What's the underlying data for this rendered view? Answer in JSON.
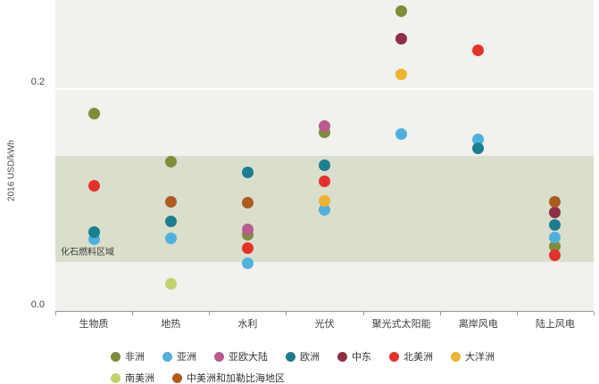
{
  "chart_data": {
    "type": "scatter",
    "title": "",
    "xlabel": "",
    "ylabel": "2016 USD/kWh",
    "ylim": [
      0,
      0.28
    ],
    "yticks": [
      0.2,
      0.0
    ],
    "grid": "single white line at 0.2",
    "legend_position": "bottom",
    "categories": [
      "生物质",
      "地热",
      "水利",
      "光伏",
      "聚光式太阳能",
      "离岸风电",
      "陆上风电"
    ],
    "fossil_fuel_band": {
      "label": "化石燃料区域",
      "min": 0.045,
      "max": 0.14
    },
    "series": [
      {
        "name": "非洲",
        "color": "#7f8c3a",
        "values": [
          0.178,
          0.135,
          0.069,
          0.161,
          0.27,
          null,
          0.059
        ]
      },
      {
        "name": "亚洲",
        "color": "#4fb0dc",
        "values": [
          0.065,
          0.066,
          0.044,
          0.092,
          0.16,
          0.155,
          0.067
        ]
      },
      {
        "name": "亚欧大陆",
        "color": "#b85c8f",
        "values": [
          null,
          null,
          0.074,
          0.167,
          null,
          null,
          null
        ]
      },
      {
        "name": "欧洲",
        "color": "#1d7e8f",
        "values": [
          0.072,
          0.081,
          0.125,
          0.132,
          null,
          0.147,
          0.078
        ]
      },
      {
        "name": "中东",
        "color": "#8e3045",
        "values": [
          null,
          null,
          null,
          null,
          0.245,
          null,
          0.089
        ]
      },
      {
        "name": "北美洲",
        "color": "#e5312b",
        "values": [
          0.113,
          null,
          0.057,
          0.117,
          null,
          0.235,
          0.051
        ]
      },
      {
        "name": "大洋洲",
        "color": "#f0b331",
        "values": [
          null,
          null,
          null,
          0.1,
          0.213,
          null,
          null
        ]
      },
      {
        "name": "南美洲",
        "color": "#bdd46a",
        "values": [
          null,
          0.025,
          null,
          null,
          null,
          null,
          null
        ]
      },
      {
        "name": "中美洲和加勒比海地区",
        "color": "#ad5b1f",
        "values": [
          null,
          0.099,
          0.098,
          null,
          null,
          null,
          0.099
        ]
      }
    ]
  }
}
